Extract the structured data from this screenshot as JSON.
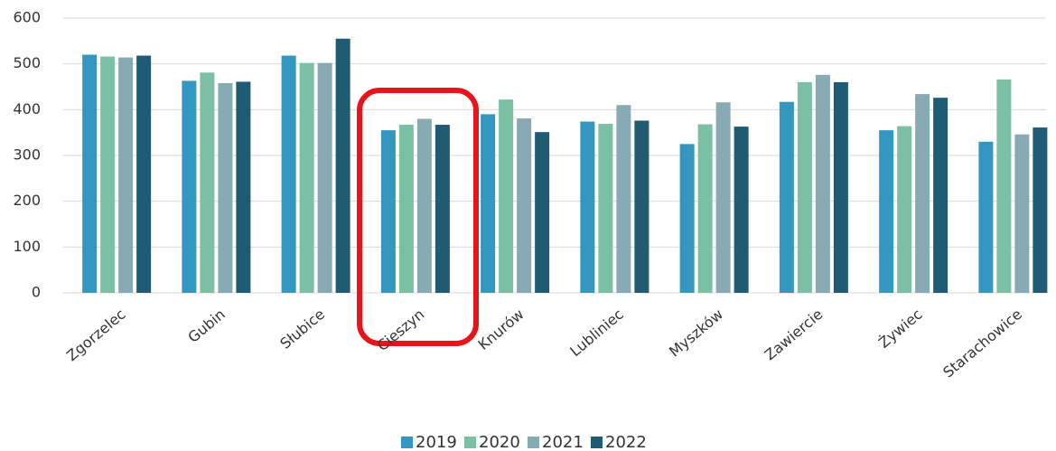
{
  "chart_data": {
    "type": "bar",
    "categories": [
      "Zgorzelec",
      "Gubin",
      "Słubice",
      "Cieszyn",
      "Knurów",
      "Lubliniec",
      "Myszków",
      "Zawiercie",
      "Żywiec",
      "Starachowice"
    ],
    "series": [
      {
        "name": "2019",
        "color": "#3497bf",
        "values": [
          520,
          463,
          518,
          355,
          390,
          374,
          325,
          417,
          355,
          330
        ]
      },
      {
        "name": "2020",
        "color": "#7bbfa5",
        "values": [
          516,
          481,
          502,
          367,
          422,
          369,
          368,
          460,
          364,
          466
        ]
      },
      {
        "name": "2021",
        "color": "#87aab4",
        "values": [
          514,
          458,
          502,
          380,
          381,
          410,
          416,
          476,
          434,
          346
        ]
      },
      {
        "name": "2022",
        "color": "#1f5c73",
        "values": [
          518,
          461,
          555,
          367,
          351,
          376,
          363,
          460,
          426,
          361
        ]
      }
    ],
    "ylim": [
      0,
      600
    ],
    "yticks": [
      0,
      100,
      200,
      300,
      400,
      500,
      600
    ],
    "grid": true,
    "legend": "bottom"
  }
}
